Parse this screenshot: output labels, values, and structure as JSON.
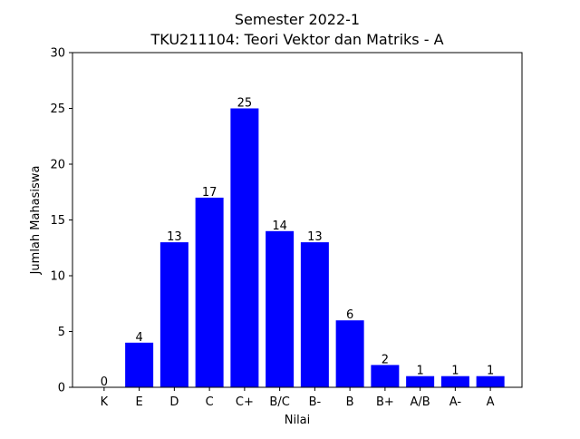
{
  "chart_data": {
    "type": "bar",
    "title": "Semester 2022-1",
    "subtitle": "TKU211104: Teori Vektor dan Matriks - A",
    "xlabel": "Nilai",
    "ylabel": "Jumlah Mahasiswa",
    "categories": [
      "K",
      "E",
      "D",
      "C",
      "C+",
      "B/C",
      "B-",
      "B",
      "B+",
      "A/B",
      "A-",
      "A"
    ],
    "values": [
      0,
      4,
      13,
      17,
      25,
      14,
      13,
      6,
      2,
      1,
      1,
      1
    ],
    "data_labels": [
      "0",
      "4",
      "13",
      "17",
      "25",
      "14",
      "13",
      "6",
      "2",
      "1",
      "1",
      "1"
    ],
    "ylim": [
      0,
      30
    ],
    "yticks": [
      0,
      5,
      10,
      15,
      20,
      25,
      30
    ],
    "grid": false,
    "legend": "none",
    "bar_color": "#0000ff"
  }
}
